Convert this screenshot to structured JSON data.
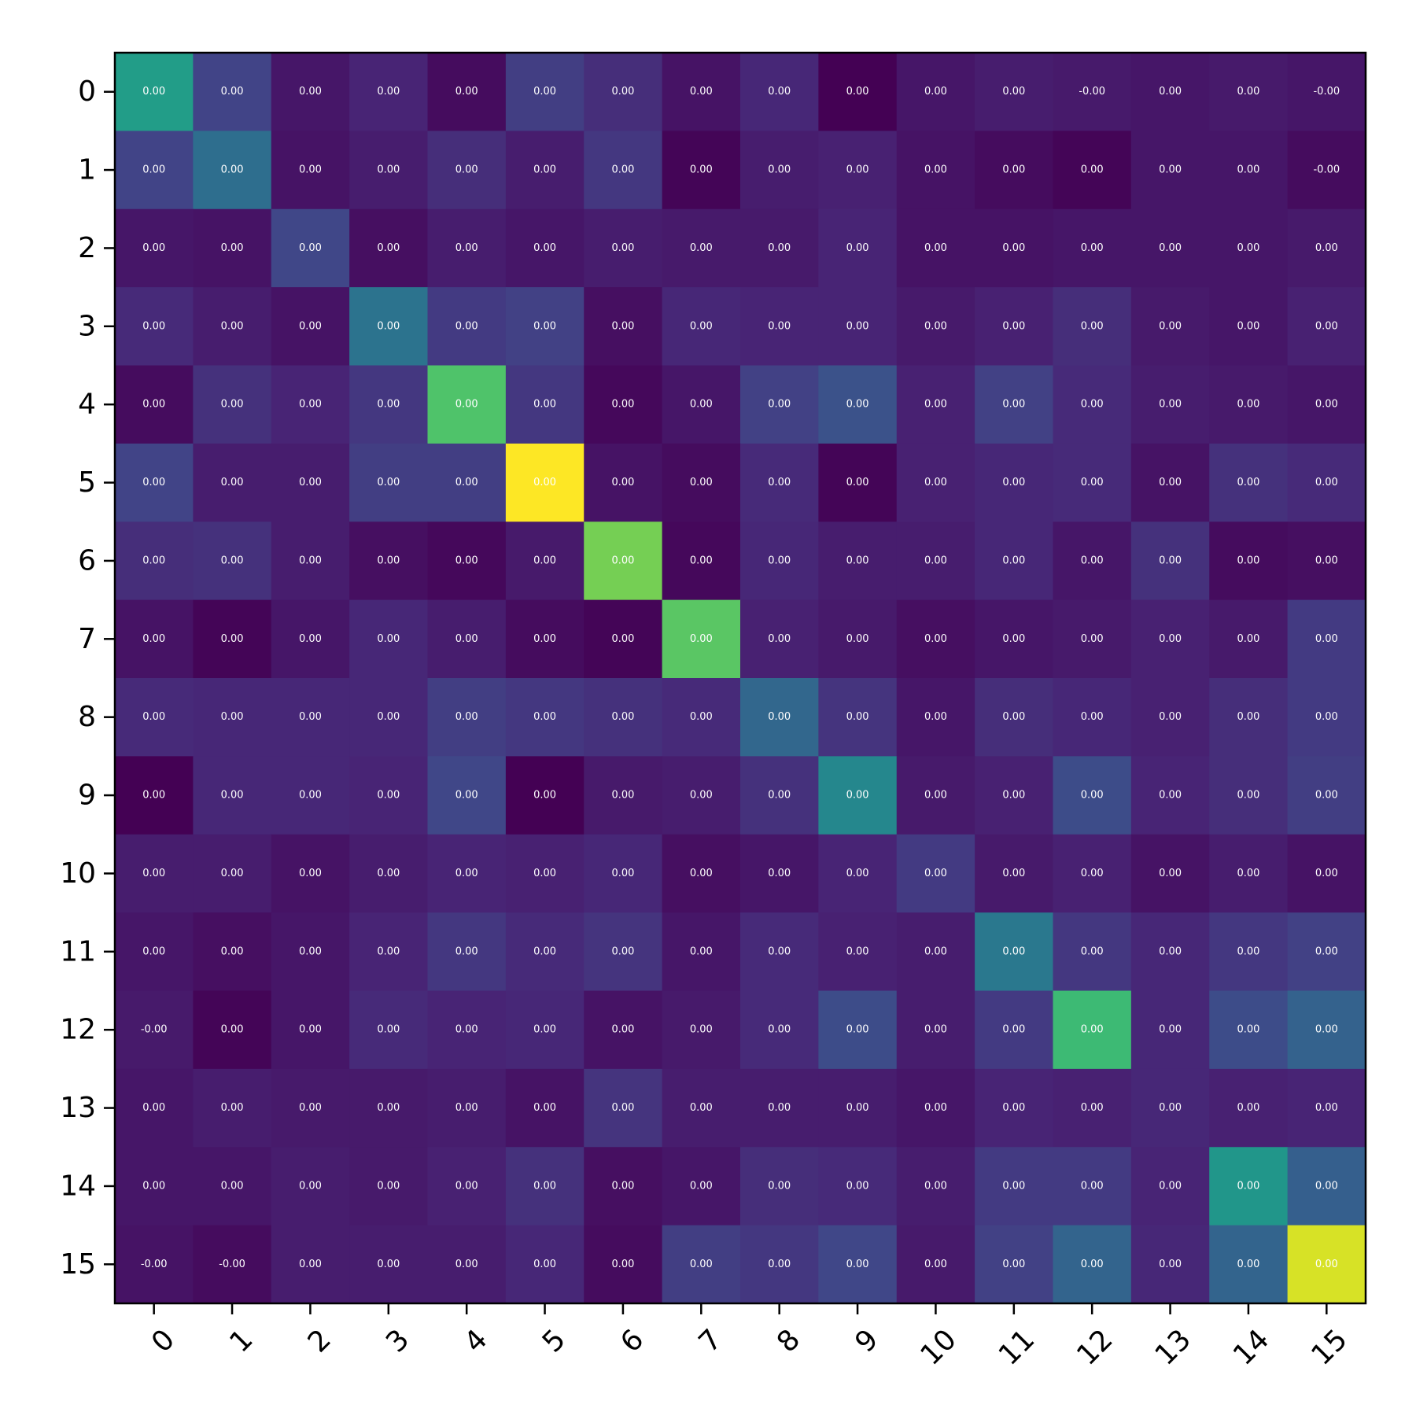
{
  "chart_data": {
    "type": "heatmap",
    "title": "",
    "xlabel": "",
    "ylabel": "",
    "colormap": "viridis",
    "grid": false,
    "legend": "none",
    "x_tick_labels": [
      "0",
      "1",
      "2",
      "3",
      "4",
      "5",
      "6",
      "7",
      "8",
      "9",
      "10",
      "11",
      "12",
      "13",
      "14",
      "15"
    ],
    "y_tick_labels": [
      "0",
      "1",
      "2",
      "3",
      "4",
      "5",
      "6",
      "7",
      "8",
      "9",
      "10",
      "11",
      "12",
      "13",
      "14",
      "15"
    ],
    "cell_labels": [
      [
        "0.00",
        "0.00",
        "0.00",
        "0.00",
        "0.00",
        "0.00",
        "0.00",
        "0.00",
        "0.00",
        "0.00",
        "0.00",
        "0.00",
        "-0.00",
        "0.00",
        "0.00",
        "-0.00"
      ],
      [
        "0.00",
        "0.00",
        "0.00",
        "0.00",
        "0.00",
        "0.00",
        "0.00",
        "0.00",
        "0.00",
        "0.00",
        "0.00",
        "0.00",
        "0.00",
        "0.00",
        "0.00",
        "-0.00"
      ],
      [
        "0.00",
        "0.00",
        "0.00",
        "0.00",
        "0.00",
        "0.00",
        "0.00",
        "0.00",
        "0.00",
        "0.00",
        "0.00",
        "0.00",
        "0.00",
        "0.00",
        "0.00",
        "0.00"
      ],
      [
        "0.00",
        "0.00",
        "0.00",
        "0.00",
        "0.00",
        "0.00",
        "0.00",
        "0.00",
        "0.00",
        "0.00",
        "0.00",
        "0.00",
        "0.00",
        "0.00",
        "0.00",
        "0.00"
      ],
      [
        "0.00",
        "0.00",
        "0.00",
        "0.00",
        "0.00",
        "0.00",
        "0.00",
        "0.00",
        "0.00",
        "0.00",
        "0.00",
        "0.00",
        "0.00",
        "0.00",
        "0.00",
        "0.00"
      ],
      [
        "0.00",
        "0.00",
        "0.00",
        "0.00",
        "0.00",
        "0.00",
        "0.00",
        "0.00",
        "0.00",
        "0.00",
        "0.00",
        "0.00",
        "0.00",
        "0.00",
        "0.00",
        "0.00"
      ],
      [
        "0.00",
        "0.00",
        "0.00",
        "0.00",
        "0.00",
        "0.00",
        "0.00",
        "0.00",
        "0.00",
        "0.00",
        "0.00",
        "0.00",
        "0.00",
        "0.00",
        "0.00",
        "0.00"
      ],
      [
        "0.00",
        "0.00",
        "0.00",
        "0.00",
        "0.00",
        "0.00",
        "0.00",
        "0.00",
        "0.00",
        "0.00",
        "0.00",
        "0.00",
        "0.00",
        "0.00",
        "0.00",
        "0.00"
      ],
      [
        "0.00",
        "0.00",
        "0.00",
        "0.00",
        "0.00",
        "0.00",
        "0.00",
        "0.00",
        "0.00",
        "0.00",
        "0.00",
        "0.00",
        "0.00",
        "0.00",
        "0.00",
        "0.00"
      ],
      [
        "0.00",
        "0.00",
        "0.00",
        "0.00",
        "0.00",
        "0.00",
        "0.00",
        "0.00",
        "0.00",
        "0.00",
        "0.00",
        "0.00",
        "0.00",
        "0.00",
        "0.00",
        "0.00"
      ],
      [
        "0.00",
        "0.00",
        "0.00",
        "0.00",
        "0.00",
        "0.00",
        "0.00",
        "0.00",
        "0.00",
        "0.00",
        "0.00",
        "0.00",
        "0.00",
        "0.00",
        "0.00",
        "0.00"
      ],
      [
        "0.00",
        "0.00",
        "0.00",
        "0.00",
        "0.00",
        "0.00",
        "0.00",
        "0.00",
        "0.00",
        "0.00",
        "0.00",
        "0.00",
        "0.00",
        "0.00",
        "0.00",
        "0.00"
      ],
      [
        "-0.00",
        "0.00",
        "0.00",
        "0.00",
        "0.00",
        "0.00",
        "0.00",
        "0.00",
        "0.00",
        "0.00",
        "0.00",
        "0.00",
        "0.00",
        "0.00",
        "0.00",
        "0.00"
      ],
      [
        "0.00",
        "0.00",
        "0.00",
        "0.00",
        "0.00",
        "0.00",
        "0.00",
        "0.00",
        "0.00",
        "0.00",
        "0.00",
        "0.00",
        "0.00",
        "0.00",
        "0.00",
        "0.00"
      ],
      [
        "0.00",
        "0.00",
        "0.00",
        "0.00",
        "0.00",
        "0.00",
        "0.00",
        "0.00",
        "0.00",
        "0.00",
        "0.00",
        "0.00",
        "0.00",
        "0.00",
        "0.00",
        "0.00"
      ],
      [
        "-0.00",
        "-0.00",
        "0.00",
        "0.00",
        "0.00",
        "0.00",
        "0.00",
        "0.00",
        "0.00",
        "0.00",
        "0.00",
        "0.00",
        "0.00",
        "0.00",
        "0.00",
        "0.00"
      ]
    ],
    "relative_intensity": [
      [
        0.55,
        0.2,
        0.06,
        0.1,
        0.03,
        0.18,
        0.13,
        0.05,
        0.11,
        0.0,
        0.06,
        0.08,
        0.07,
        0.06,
        0.07,
        0.06
      ],
      [
        0.2,
        0.36,
        0.05,
        0.08,
        0.13,
        0.08,
        0.16,
        0.01,
        0.08,
        0.09,
        0.05,
        0.03,
        0.01,
        0.06,
        0.06,
        0.03
      ],
      [
        0.06,
        0.05,
        0.21,
        0.04,
        0.08,
        0.06,
        0.08,
        0.07,
        0.07,
        0.1,
        0.05,
        0.05,
        0.06,
        0.06,
        0.06,
        0.07
      ],
      [
        0.12,
        0.08,
        0.05,
        0.38,
        0.17,
        0.19,
        0.04,
        0.11,
        0.1,
        0.1,
        0.07,
        0.09,
        0.13,
        0.07,
        0.06,
        0.09
      ],
      [
        0.03,
        0.14,
        0.1,
        0.16,
        0.72,
        0.16,
        0.02,
        0.06,
        0.19,
        0.25,
        0.09,
        0.19,
        0.12,
        0.08,
        0.07,
        0.06
      ],
      [
        0.2,
        0.08,
        0.08,
        0.18,
        0.18,
        1.0,
        0.05,
        0.03,
        0.12,
        0.01,
        0.09,
        0.11,
        0.12,
        0.05,
        0.14,
        0.12
      ],
      [
        0.13,
        0.14,
        0.08,
        0.04,
        0.02,
        0.07,
        0.79,
        0.02,
        0.11,
        0.08,
        0.08,
        0.11,
        0.06,
        0.14,
        0.03,
        0.04
      ],
      [
        0.05,
        0.01,
        0.06,
        0.11,
        0.08,
        0.03,
        0.01,
        0.74,
        0.09,
        0.07,
        0.04,
        0.06,
        0.07,
        0.09,
        0.07,
        0.17
      ],
      [
        0.12,
        0.11,
        0.11,
        0.11,
        0.18,
        0.16,
        0.14,
        0.12,
        0.33,
        0.15,
        0.06,
        0.13,
        0.11,
        0.09,
        0.13,
        0.17
      ],
      [
        0.0,
        0.11,
        0.11,
        0.1,
        0.21,
        0.0,
        0.07,
        0.08,
        0.14,
        0.46,
        0.07,
        0.09,
        0.23,
        0.1,
        0.13,
        0.18
      ],
      [
        0.08,
        0.08,
        0.05,
        0.08,
        0.1,
        0.09,
        0.11,
        0.04,
        0.06,
        0.1,
        0.17,
        0.07,
        0.09,
        0.05,
        0.08,
        0.05
      ],
      [
        0.06,
        0.04,
        0.06,
        0.1,
        0.16,
        0.12,
        0.15,
        0.06,
        0.12,
        0.09,
        0.08,
        0.4,
        0.16,
        0.11,
        0.16,
        0.19
      ],
      [
        0.07,
        0.01,
        0.06,
        0.12,
        0.1,
        0.11,
        0.05,
        0.07,
        0.12,
        0.23,
        0.08,
        0.17,
        0.68,
        0.11,
        0.23,
        0.31
      ],
      [
        0.06,
        0.08,
        0.07,
        0.07,
        0.08,
        0.05,
        0.15,
        0.08,
        0.08,
        0.08,
        0.06,
        0.1,
        0.09,
        0.11,
        0.09,
        0.1
      ],
      [
        0.06,
        0.06,
        0.08,
        0.07,
        0.09,
        0.14,
        0.04,
        0.06,
        0.13,
        0.12,
        0.08,
        0.17,
        0.17,
        0.1,
        0.52,
        0.3
      ],
      [
        0.05,
        0.03,
        0.08,
        0.08,
        0.08,
        0.11,
        0.03,
        0.18,
        0.16,
        0.21,
        0.07,
        0.19,
        0.32,
        0.11,
        0.32,
        0.94
      ]
    ]
  }
}
